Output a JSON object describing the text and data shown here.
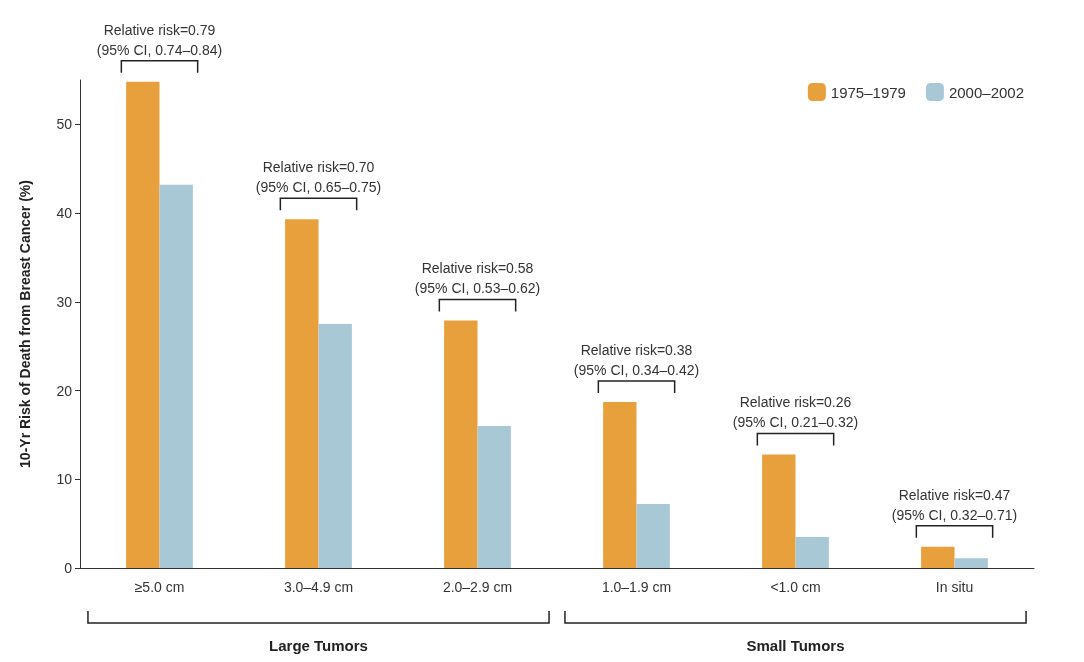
{
  "chart_data": {
    "type": "bar",
    "ylabel": "10-Yr Risk of Death from Breast Cancer (%)",
    "categories": [
      "≥5.0 cm",
      "3.0–4.9 cm",
      "2.0–2.9 cm",
      "1.0–1.9 cm",
      "<1.0 cm",
      "In situ"
    ],
    "series": [
      {
        "name": "1975–1979",
        "color": "#e8a03c",
        "values": [
          54.8,
          39.3,
          27.9,
          18.7,
          12.8,
          2.4
        ]
      },
      {
        "name": "2000–2002",
        "color": "#a9c8d6",
        "values": [
          43.2,
          27.5,
          16.0,
          7.2,
          3.5,
          1.1
        ]
      }
    ],
    "ylim": [
      0,
      55
    ],
    "yticks": [
      0,
      10,
      20,
      30,
      40,
      50
    ],
    "grid": false,
    "legend": "top right",
    "annotations": [
      {
        "text": "Relative risk=0.79\n(95% CI, 0.74–0.84)",
        "x": "≥5.0 cm",
        "y": 54.8
      },
      {
        "text": "Relative risk=0.70\n(95% CI, 0.65–0.75)",
        "x": "3.0–4.9 cm",
        "y": 39.3
      },
      {
        "text": "Relative risk=0.58\n(95% CI, 0.53–0.62)",
        "x": "2.0–2.9 cm",
        "y": 27.9
      },
      {
        "text": "Relative risk=0.38\n(95% CI, 0.34–0.42)",
        "x": "1.0–1.9 cm",
        "y": 18.7
      },
      {
        "text": "Relative risk=0.26\n(95% CI, 0.21–0.32)",
        "x": "<1.0 cm",
        "y": 12.8
      },
      {
        "text": "Relative risk=0.47\n(95% CI, 0.32–0.71)",
        "x": "In situ",
        "y": 2.4
      },
      "Large Tumors",
      "Small Tumors"
    ]
  }
}
